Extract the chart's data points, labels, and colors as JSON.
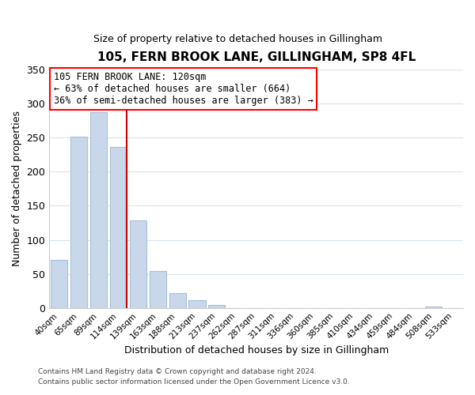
{
  "title": "105, FERN BROOK LANE, GILLINGHAM, SP8 4FL",
  "subtitle": "Size of property relative to detached houses in Gillingham",
  "xlabel": "Distribution of detached houses by size in Gillingham",
  "ylabel": "Number of detached properties",
  "bar_labels": [
    "40sqm",
    "65sqm",
    "89sqm",
    "114sqm",
    "139sqm",
    "163sqm",
    "188sqm",
    "213sqm",
    "237sqm",
    "262sqm",
    "287sqm",
    "311sqm",
    "336sqm",
    "360sqm",
    "385sqm",
    "410sqm",
    "434sqm",
    "459sqm",
    "484sqm",
    "508sqm",
    "533sqm"
  ],
  "bar_heights": [
    70,
    251,
    287,
    236,
    128,
    54,
    22,
    11,
    4,
    0,
    0,
    0,
    0,
    0,
    0,
    0,
    0,
    0,
    0,
    2,
    0
  ],
  "bar_color": "#c8d8ea",
  "bar_edge_color": "#a8c0d8",
  "vline_color": "#cc0000",
  "ylim": [
    0,
    350
  ],
  "yticks": [
    0,
    50,
    100,
    150,
    200,
    250,
    300,
    350
  ],
  "annotation_title": "105 FERN BROOK LANE: 120sqm",
  "annotation_line1": "← 63% of detached houses are smaller (664)",
  "annotation_line2": "36% of semi-detached houses are larger (383) →",
  "footer1": "Contains HM Land Registry data © Crown copyright and database right 2024.",
  "footer2": "Contains public sector information licensed under the Open Government Licence v3.0.",
  "background_color": "#ffffff",
  "grid_color": "#d8e4f0"
}
